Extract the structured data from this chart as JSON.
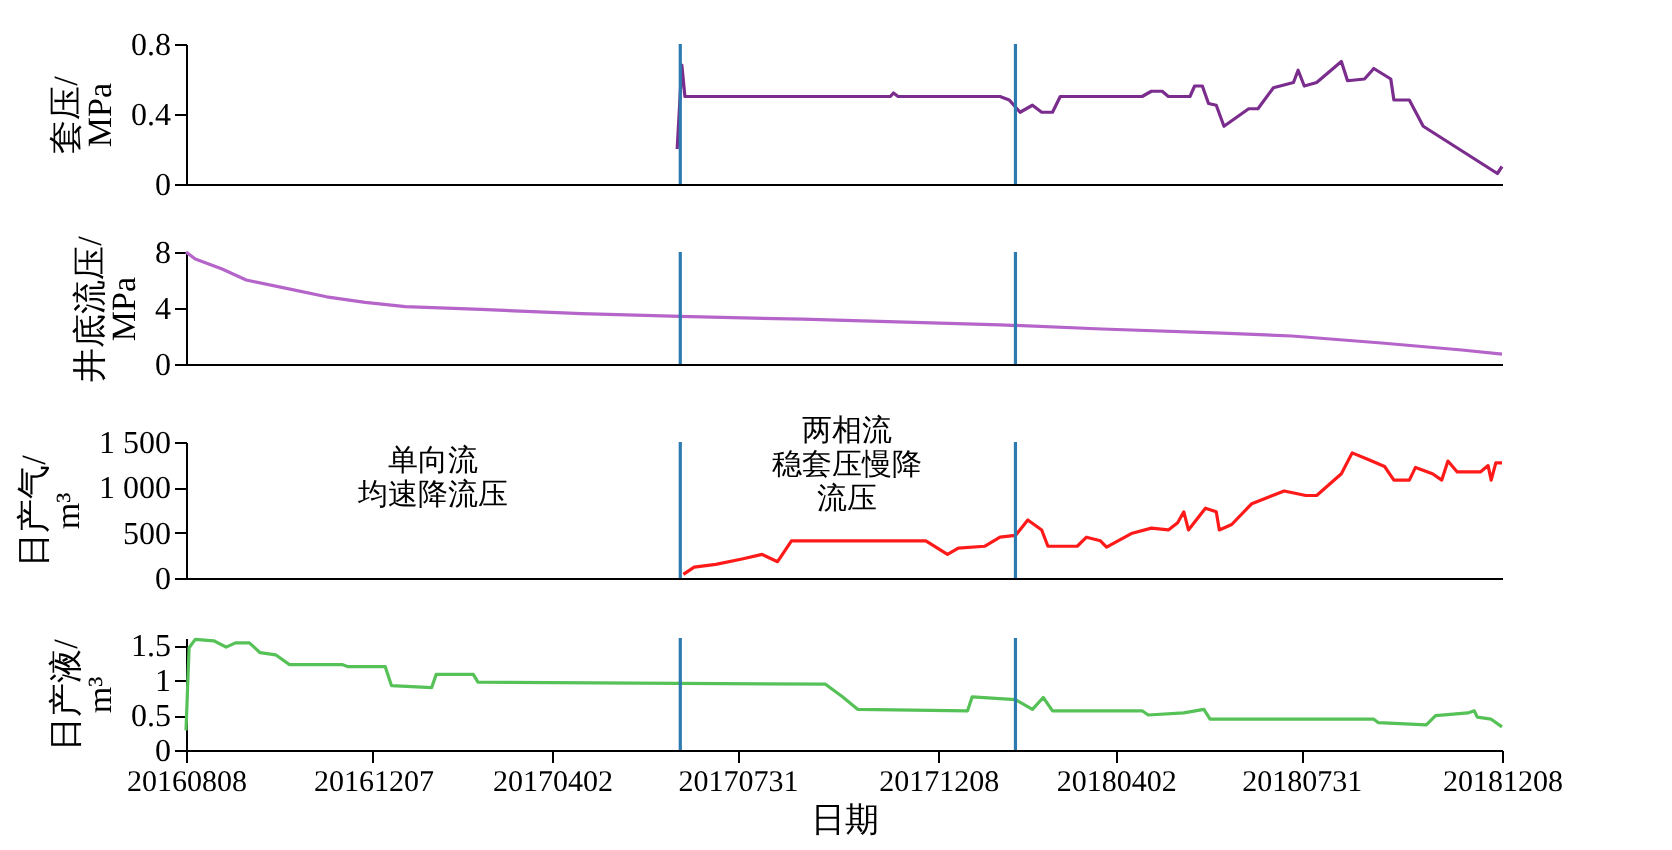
{
  "chart_data": [
    {
      "type": "line",
      "ylabel": "套压/\nMPa",
      "xlim": [
        "2016-08-08",
        "2018-12-08"
      ],
      "ylim": [
        0,
        0.8
      ],
      "yticks": [
        0,
        0.4,
        0.8
      ],
      "tick_labels": "y",
      "color": "#7b2d8e",
      "x": [
        "2017-06-22",
        "2017-06-25",
        "2017-06-27",
        "2017-11-07",
        "2017-11-09",
        "2017-11-12",
        "2018-01-17",
        "2018-01-23",
        "2018-01-30",
        "2018-02-07",
        "2018-02-13",
        "2018-02-20",
        "2018-02-25",
        "2018-04-19",
        "2018-04-25",
        "2018-05-02",
        "2018-05-06",
        "2018-05-20",
        "2018-05-23",
        "2018-05-28",
        "2018-06-01",
        "2018-06-06",
        "2018-06-11",
        "2018-06-27",
        "2018-07-03",
        "2018-07-13",
        "2018-07-26",
        "2018-07-29",
        "2018-08-02",
        "2018-08-10",
        "2018-08-26",
        "2018-08-30",
        "2018-09-10",
        "2018-09-16",
        "2018-09-27",
        "2018-09-29",
        "2018-10-09",
        "2018-10-18",
        "2018-12-05",
        "2018-12-08"
      ],
      "values": [
        0.2,
        0.68,
        0.5,
        0.5,
        0.52,
        0.5,
        0.5,
        0.48,
        0.41,
        0.45,
        0.41,
        0.41,
        0.5,
        0.5,
        0.53,
        0.53,
        0.5,
        0.5,
        0.56,
        0.56,
        0.46,
        0.45,
        0.33,
        0.43,
        0.43,
        0.55,
        0.58,
        0.65,
        0.56,
        0.58,
        0.7,
        0.59,
        0.6,
        0.66,
        0.6,
        0.48,
        0.48,
        0.33,
        0.06,
        0.1
      ],
      "ref_lines": [
        {
          "axis": "x",
          "value": "2017-06-24",
          "color": "#2b7bb0"
        },
        {
          "axis": "x",
          "value": "2018-01-27",
          "color": "#2b7bb0"
        }
      ]
    },
    {
      "type": "line",
      "ylabel": "井底流压/\nMPa",
      "xlim": [
        "2016-08-08",
        "2018-12-08"
      ],
      "ylim": [
        0,
        8
      ],
      "yticks": [
        0,
        4,
        8
      ],
      "tick_labels": "y",
      "color": "#b565c9",
      "x": [
        "2016-08-08",
        "2016-08-14",
        "2016-08-31",
        "2016-09-16",
        "2016-10-12",
        "2016-11-07",
        "2016-12-02",
        "2016-12-28",
        "2017-02-15",
        "2017-04-21",
        "2017-06-24",
        "2017-09-11",
        "2018-01-17",
        "2018-03-24",
        "2018-06-10",
        "2018-07-25",
        "2018-09-21",
        "2018-11-12",
        "2018-12-08"
      ],
      "values": [
        8.0,
        7.5,
        6.8,
        6.0,
        5.4,
        4.8,
        4.4,
        4.1,
        3.9,
        3.6,
        3.4,
        3.2,
        2.8,
        2.5,
        2.2,
        2.0,
        1.5,
        1.0,
        0.7
      ],
      "ref_lines": [
        {
          "axis": "x",
          "value": "2017-06-24",
          "color": "#2b7bb0"
        },
        {
          "axis": "x",
          "value": "2018-01-27",
          "color": "#2b7bb0"
        }
      ]
    },
    {
      "type": "line",
      "ylabel": "日产气/\nm³",
      "xlim": [
        "2016-08-08",
        "2018-12-08"
      ],
      "ylim": [
        0,
        1500
      ],
      "yticks": [
        0,
        500,
        {
          "value": 1000,
          "label": "1 000"
        },
        {
          "value": 1500,
          "label": "1 500"
        }
      ],
      "tick_labels": "y",
      "color": "#ff1a1a",
      "x": [
        "2017-06-26",
        "2017-07-03",
        "2017-07-17",
        "2017-08-03",
        "2017-08-16",
        "2017-08-26",
        "2017-09-04",
        "2017-11-30",
        "2017-12-14",
        "2017-12-21",
        "2018-01-07",
        "2018-01-17",
        "2018-01-27",
        "2018-02-04",
        "2018-02-13",
        "2018-02-17",
        "2018-03-08",
        "2018-03-14",
        "2018-03-23",
        "2018-03-27",
        "2018-04-12",
        "2018-04-25",
        "2018-05-06",
        "2018-05-12",
        "2018-05-16",
        "2018-05-19",
        "2018-05-30",
        "2018-06-06",
        "2018-06-08",
        "2018-06-16",
        "2018-06-29",
        "2018-07-20",
        "2018-08-03",
        "2018-08-10",
        "2018-08-26",
        "2018-09-02",
        "2018-09-12",
        "2018-09-23",
        "2018-09-29",
        "2018-10-09",
        "2018-10-13",
        "2018-10-24",
        "2018-10-30",
        "2018-11-03",
        "2018-11-09",
        "2018-11-24",
        "2018-11-29",
        "2018-12-01",
        "2018-12-04",
        "2018-12-08"
      ],
      "values": [
        40,
        120,
        150,
        210,
        260,
        180,
        410,
        410,
        260,
        330,
        350,
        450,
        470,
        640,
        530,
        350,
        350,
        450,
        410,
        340,
        490,
        550,
        530,
        610,
        730,
        530,
        770,
        730,
        530,
        590,
        820,
        960,
        910,
        910,
        1150,
        1380,
        1310,
        1230,
        1080,
        1080,
        1220,
        1150,
        1080,
        1290,
        1170,
        1170,
        1240,
        1080,
        1270,
        1270
      ],
      "ref_lines": [
        {
          "axis": "x",
          "value": "2017-06-24",
          "color": "#2b7bb0"
        },
        {
          "axis": "x",
          "value": "2018-01-27",
          "color": "#2b7bb0"
        }
      ],
      "annotations": [
        "单向流均速降流压",
        "两相流稳套压慢降流压"
      ]
    },
    {
      "type": "line",
      "ylabel": "日产液/\nm³",
      "xlabel": "日期",
      "xlim": [
        "2016-08-08",
        "2018-12-08"
      ],
      "ylim": [
        0,
        1.6
      ],
      "yticks": [
        0,
        0.5,
        1,
        1.5
      ],
      "color": "#55c157",
      "xticks": [
        {
          "value": "2016-08-08",
          "label": "20160808"
        },
        {
          "value": "2016-12-07",
          "label": "20161207"
        },
        {
          "value": "2017-04-02",
          "label": "20170402"
        },
        {
          "value": "2017-07-31",
          "label": "20170731"
        },
        {
          "value": "2017-12-08",
          "label": "20171208"
        },
        {
          "value": "2018-04-02",
          "label": "20180402"
        },
        {
          "value": "2018-07-31",
          "label": "20180731"
        },
        {
          "value": "2018-12-08",
          "label": "20181208"
        }
      ],
      "x": [
        "2016-08-08",
        "2016-08-10",
        "2016-08-14",
        "2016-08-26",
        "2016-09-03",
        "2016-09-09",
        "2016-09-18",
        "2016-09-25",
        "2016-10-05",
        "2016-10-14",
        "2016-11-17",
        "2016-11-21",
        "2016-12-15",
        "2016-12-19",
        "2017-01-14",
        "2017-01-17",
        "2017-02-10",
        "2017-02-13",
        "2017-09-26",
        "2017-10-07",
        "2017-10-17",
        "2017-12-27",
        "2017-12-30",
        "2018-01-27",
        "2018-02-07",
        "2018-02-14",
        "2018-02-20",
        "2018-04-19",
        "2018-04-23",
        "2018-05-16",
        "2018-05-29",
        "2018-06-02",
        "2018-09-16",
        "2018-09-19",
        "2018-10-20",
        "2018-10-26",
        "2018-11-16",
        "2018-11-20",
        "2018-11-22",
        "2018-12-01",
        "2018-12-08"
      ],
      "values": [
        0.28,
        1.46,
        1.58,
        1.56,
        1.47,
        1.53,
        1.53,
        1.39,
        1.36,
        1.22,
        1.22,
        1.19,
        1.19,
        0.92,
        0.89,
        1.08,
        1.08,
        0.97,
        0.94,
        0.76,
        0.58,
        0.56,
        0.76,
        0.72,
        0.58,
        0.75,
        0.56,
        0.56,
        0.5,
        0.53,
        0.58,
        0.44,
        0.44,
        0.39,
        0.36,
        0.49,
        0.53,
        0.56,
        0.47,
        0.44,
        0.33
      ],
      "ref_lines": [
        {
          "axis": "x",
          "value": "2017-06-24",
          "color": "#2b7bb0"
        },
        {
          "axis": "x",
          "value": "2018-01-27",
          "color": "#2b7bb0"
        }
      ]
    }
  ]
}
